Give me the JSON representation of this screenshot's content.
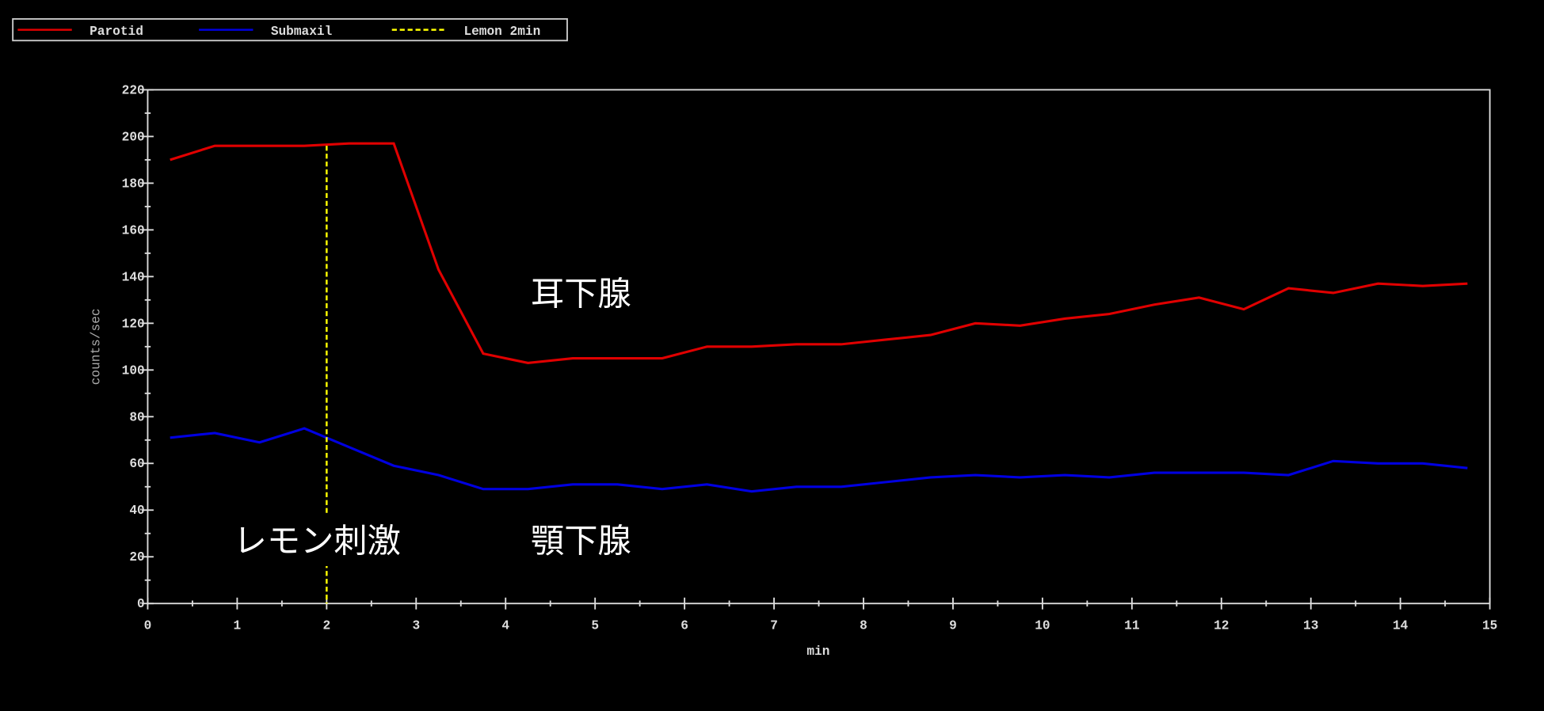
{
  "chart_data": {
    "type": "line",
    "xlabel": "min",
    "ylabel": "counts/sec",
    "xlim": [
      0,
      15
    ],
    "xticks": [
      0,
      1,
      2,
      3,
      4,
      5,
      6,
      7,
      8,
      9,
      10,
      11,
      12,
      13,
      14,
      15
    ],
    "ylim": [
      0,
      220
    ],
    "yticks": [
      0,
      20,
      40,
      60,
      80,
      100,
      120,
      140,
      160,
      180,
      200,
      220
    ],
    "x": [
      0.25,
      0.75,
      1.25,
      1.75,
      2.25,
      2.75,
      3.25,
      3.75,
      4.25,
      4.75,
      5.25,
      5.75,
      6.25,
      6.75,
      7.25,
      7.75,
      8.25,
      8.75,
      9.25,
      9.75,
      10.25,
      10.75,
      11.25,
      11.75,
      12.25,
      12.75,
      13.25,
      13.75,
      14.25,
      14.75
    ],
    "series": [
      {
        "name": "Parotid",
        "color": "#e00000",
        "values": [
          190,
          196,
          196,
          196,
          197,
          197,
          143,
          107,
          103,
          105,
          105,
          105,
          110,
          110,
          111,
          111,
          113,
          115,
          120,
          119,
          122,
          124,
          128,
          131,
          126,
          135,
          133,
          137,
          136,
          137
        ]
      },
      {
        "name": "Submaxil",
        "color": "#0000e0",
        "values": [
          71,
          73,
          69,
          75,
          67,
          59,
          55,
          49,
          49,
          51,
          51,
          49,
          51,
          48,
          50,
          50,
          52,
          54,
          55,
          54,
          55,
          54,
          56,
          56,
          56,
          55,
          61,
          60,
          60,
          58
        ]
      }
    ],
    "marker_line": {
      "name": "Lemon 2min",
      "color": "#ffff00",
      "x": [
        2,
        2
      ],
      "values": [
        196,
        0
      ]
    },
    "annotations": [
      "耳下腺",
      "顎下腺",
      "レモン刺激"
    ]
  }
}
